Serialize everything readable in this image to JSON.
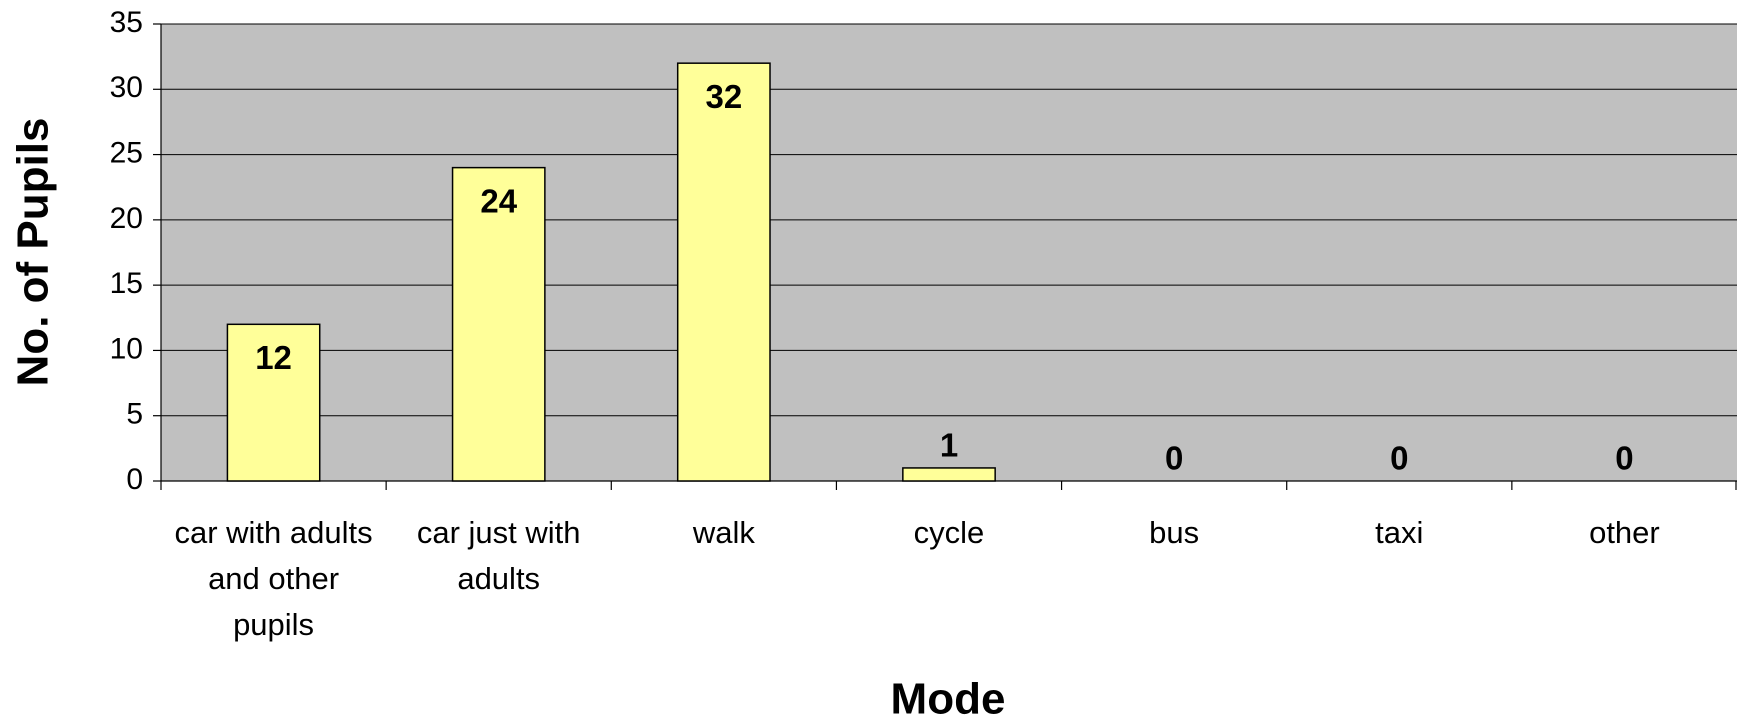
{
  "chart_data": {
    "type": "bar",
    "x_label": "Mode",
    "y_label": "No. of Pupils",
    "categories": [
      "car with adults and other pupils",
      "car just with adults",
      "walk",
      "cycle",
      "bus",
      "taxi",
      "other"
    ],
    "values": [
      12,
      24,
      32,
      1,
      0,
      0,
      0
    ],
    "color": "#ffff99",
    "background": "#c0c0c0",
    "ylim": [
      0,
      35
    ],
    "yticks": [
      0,
      5,
      10,
      15,
      20,
      25,
      30,
      35
    ],
    "grid": true
  }
}
